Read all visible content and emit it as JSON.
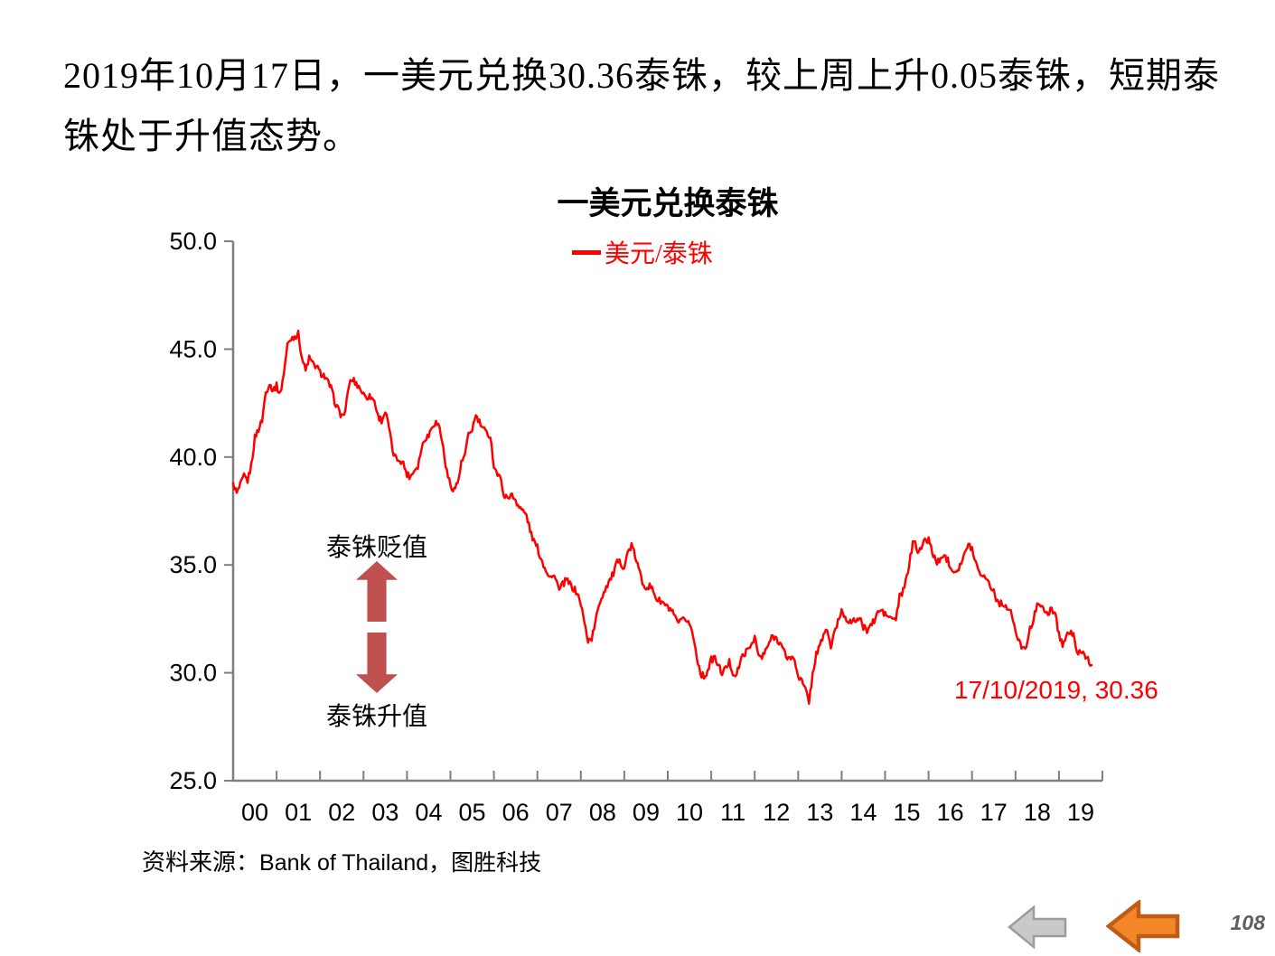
{
  "intro": {
    "text": "2019年10月17日，一美元兑换30.36泰铢，较上周上升0.05泰铢，短期泰铢处于升值态势。"
  },
  "chart_data": {
    "type": "line",
    "title": "一美元兑换泰铢",
    "legend": {
      "label": "美元/泰铢",
      "position": "top-center"
    },
    "xlim": [
      2000,
      2020
    ],
    "ylim": [
      25.0,
      50.0
    ],
    "yticks": [
      "25.0",
      "30.0",
      "35.0",
      "40.0",
      "45.0",
      "50.0"
    ],
    "xtick_labels": [
      "00",
      "01",
      "02",
      "03",
      "04",
      "05",
      "06",
      "07",
      "08",
      "09",
      "10",
      "11",
      "12",
      "13",
      "14",
      "15",
      "16",
      "17",
      "18",
      "19"
    ],
    "grid": false,
    "axis_color": "#7f7f7f",
    "series": [
      {
        "name": "美元/泰铢",
        "color": "#ff0000",
        "unit": "THB per USD",
        "start_year": 2000,
        "interval_months": 1,
        "start": "2000-01",
        "end": "2019-10",
        "values": [
          38.8,
          38.3,
          38.7,
          39.1,
          38.9,
          39.6,
          40.9,
          41.3,
          41.7,
          43.0,
          43.4,
          43.1,
          43.3,
          42.9,
          43.9,
          45.2,
          45.5,
          45.6,
          45.7,
          44.6,
          44.0,
          44.6,
          44.3,
          44.2,
          43.9,
          43.8,
          43.5,
          43.2,
          42.6,
          42.2,
          41.9,
          42.1,
          43.4,
          43.6,
          43.4,
          43.2,
          42.9,
          42.8,
          42.8,
          42.6,
          41.9,
          41.7,
          42.1,
          41.4,
          40.3,
          39.9,
          39.9,
          39.7,
          39.2,
          39.1,
          39.4,
          39.6,
          40.4,
          40.9,
          41.0,
          41.5,
          41.6,
          41.4,
          40.4,
          39.3,
          38.7,
          38.5,
          38.8,
          39.7,
          40.1,
          41.0,
          41.3,
          41.9,
          41.6,
          41.3,
          41.1,
          41.0,
          39.6,
          39.2,
          38.9,
          38.1,
          38.2,
          38.2,
          38.0,
          37.7,
          37.5,
          37.3,
          36.6,
          36.1,
          35.8,
          35.3,
          34.9,
          34.6,
          34.4,
          34.5,
          33.8,
          34.1,
          34.3,
          34.1,
          33.9,
          33.7,
          33.2,
          32.3,
          31.5,
          31.6,
          32.3,
          33.2,
          33.6,
          34.0,
          34.3,
          34.6,
          35.1,
          35.1,
          34.9,
          35.6,
          35.9,
          35.4,
          34.8,
          34.2,
          34.0,
          34.0,
          33.8,
          33.4,
          33.3,
          33.2,
          33.0,
          32.9,
          32.5,
          32.3,
          32.4,
          32.5,
          32.3,
          31.7,
          30.8,
          30.0,
          29.8,
          30.1,
          30.6,
          30.7,
          30.3,
          30.0,
          30.2,
          30.5,
          30.0,
          29.9,
          30.5,
          30.9,
          31.0,
          31.3,
          31.7,
          30.8,
          30.7,
          31.0,
          31.4,
          31.7,
          31.6,
          31.4,
          31.0,
          30.7,
          30.7,
          30.6,
          29.9,
          29.6,
          29.2,
          28.7,
          29.9,
          30.9,
          31.2,
          31.8,
          32.0,
          31.2,
          31.8,
          32.4,
          32.9,
          32.6,
          32.4,
          32.3,
          32.5,
          32.5,
          32.1,
          32.0,
          32.2,
          32.4,
          32.8,
          32.9,
          32.7,
          32.6,
          32.5,
          32.5,
          33.5,
          33.8,
          34.4,
          35.4,
          36.2,
          35.7,
          35.8,
          36.1,
          36.2,
          35.6,
          35.2,
          35.1,
          35.5,
          35.3,
          35.0,
          34.7,
          34.8,
          35.1,
          35.5,
          35.9,
          35.8,
          35.1,
          34.8,
          34.4,
          34.5,
          34.0,
          33.8,
          33.3,
          33.2,
          33.2,
          32.9,
          32.7,
          31.9,
          31.4,
          31.2,
          31.3,
          32.0,
          32.4,
          33.3,
          33.2,
          32.7,
          32.8,
          33.0,
          32.7,
          31.8,
          31.3,
          31.7,
          31.9,
          31.7,
          31.1,
          30.8,
          30.9,
          30.6,
          30.36
        ]
      }
    ],
    "last_point": {
      "label": "17/10/2019, 30.36",
      "date": "17/10/2019",
      "value": 30.36
    },
    "annotations": {
      "depreciation_label": "泰铢贬值",
      "appreciation_label": "泰铢升值",
      "arrow_color": "#c0504d"
    }
  },
  "source": {
    "prefix": "资料来源：",
    "text": "Bank of Thailand，图胜科技"
  },
  "footer": {
    "page_number": "108"
  },
  "colors": {
    "line_red": "#ff0000",
    "annotation_arrow": "#c0504d",
    "axis_gray": "#7f7f7f",
    "nav_gray_fill": "#c9c9c9",
    "nav_gray_stroke": "#9c9c9c",
    "nav_orange_fill": "#f4862a",
    "nav_orange_stroke": "#bf5d14"
  }
}
